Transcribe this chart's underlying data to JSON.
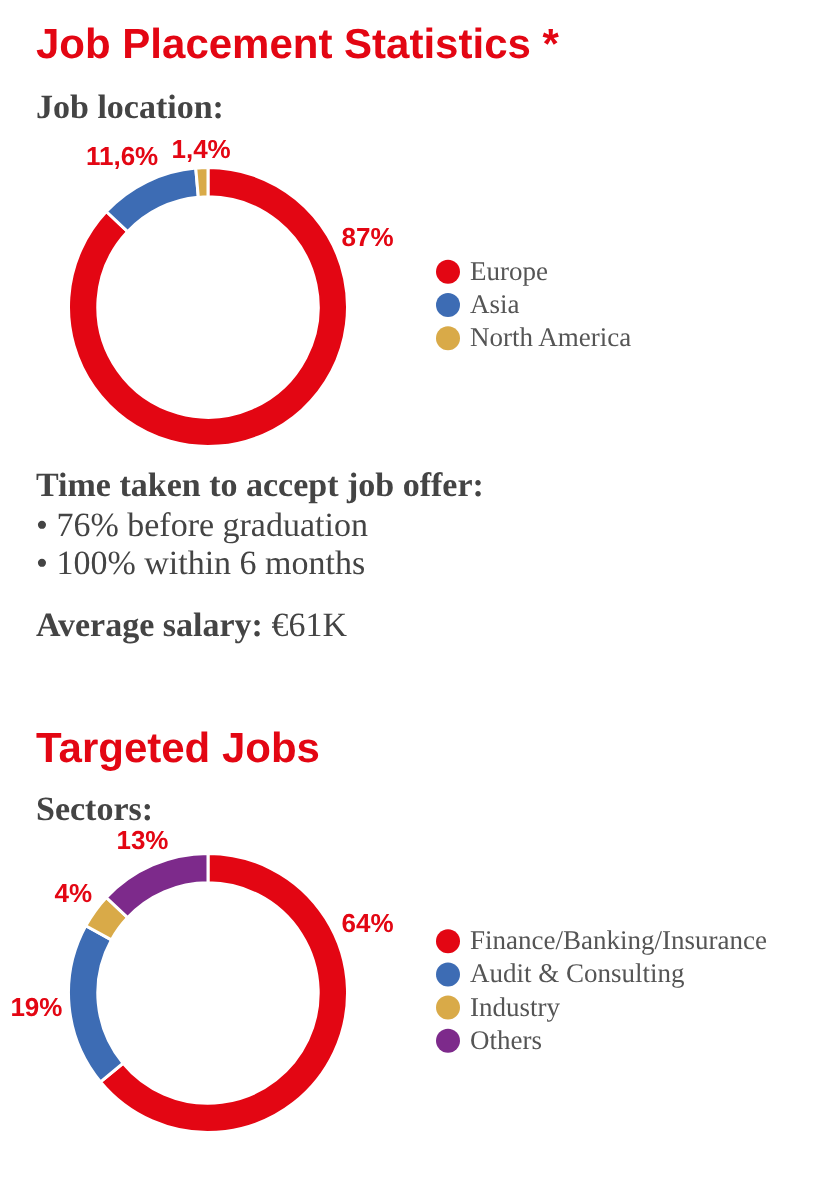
{
  "chart_data": [
    {
      "type": "donut",
      "title": "Job Placement Statistics *",
      "subtitle": "Job location:",
      "categories": [
        "Europe",
        "Asia",
        "North America"
      ],
      "values": [
        87,
        11.6,
        1.4
      ],
      "colors": [
        "#e30613",
        "#3d6cb4",
        "#d9aa48"
      ],
      "value_labels": [
        "87%",
        "11,6%",
        "1,4%"
      ],
      "legend": "right"
    },
    {
      "type": "other",
      "title": "Time taken to accept job offer:",
      "annotations": [
        "• 76% before graduation",
        "• 100% within 6 months",
        "Average salary: €61K"
      ]
    },
    {
      "type": "donut",
      "title": "Targeted Jobs",
      "subtitle": "Sectors:",
      "categories": [
        "Finance/Banking/Insurance",
        "Audit & Consulting",
        "Industry",
        "Others"
      ],
      "values": [
        64,
        19,
        4,
        13
      ],
      "colors": [
        "#e30613",
        "#3d6cb4",
        "#d9aa48",
        "#7d2a8b"
      ],
      "value_labels": [
        "64%",
        "19%",
        "4%",
        "13%"
      ],
      "legend": "right"
    }
  ]
}
